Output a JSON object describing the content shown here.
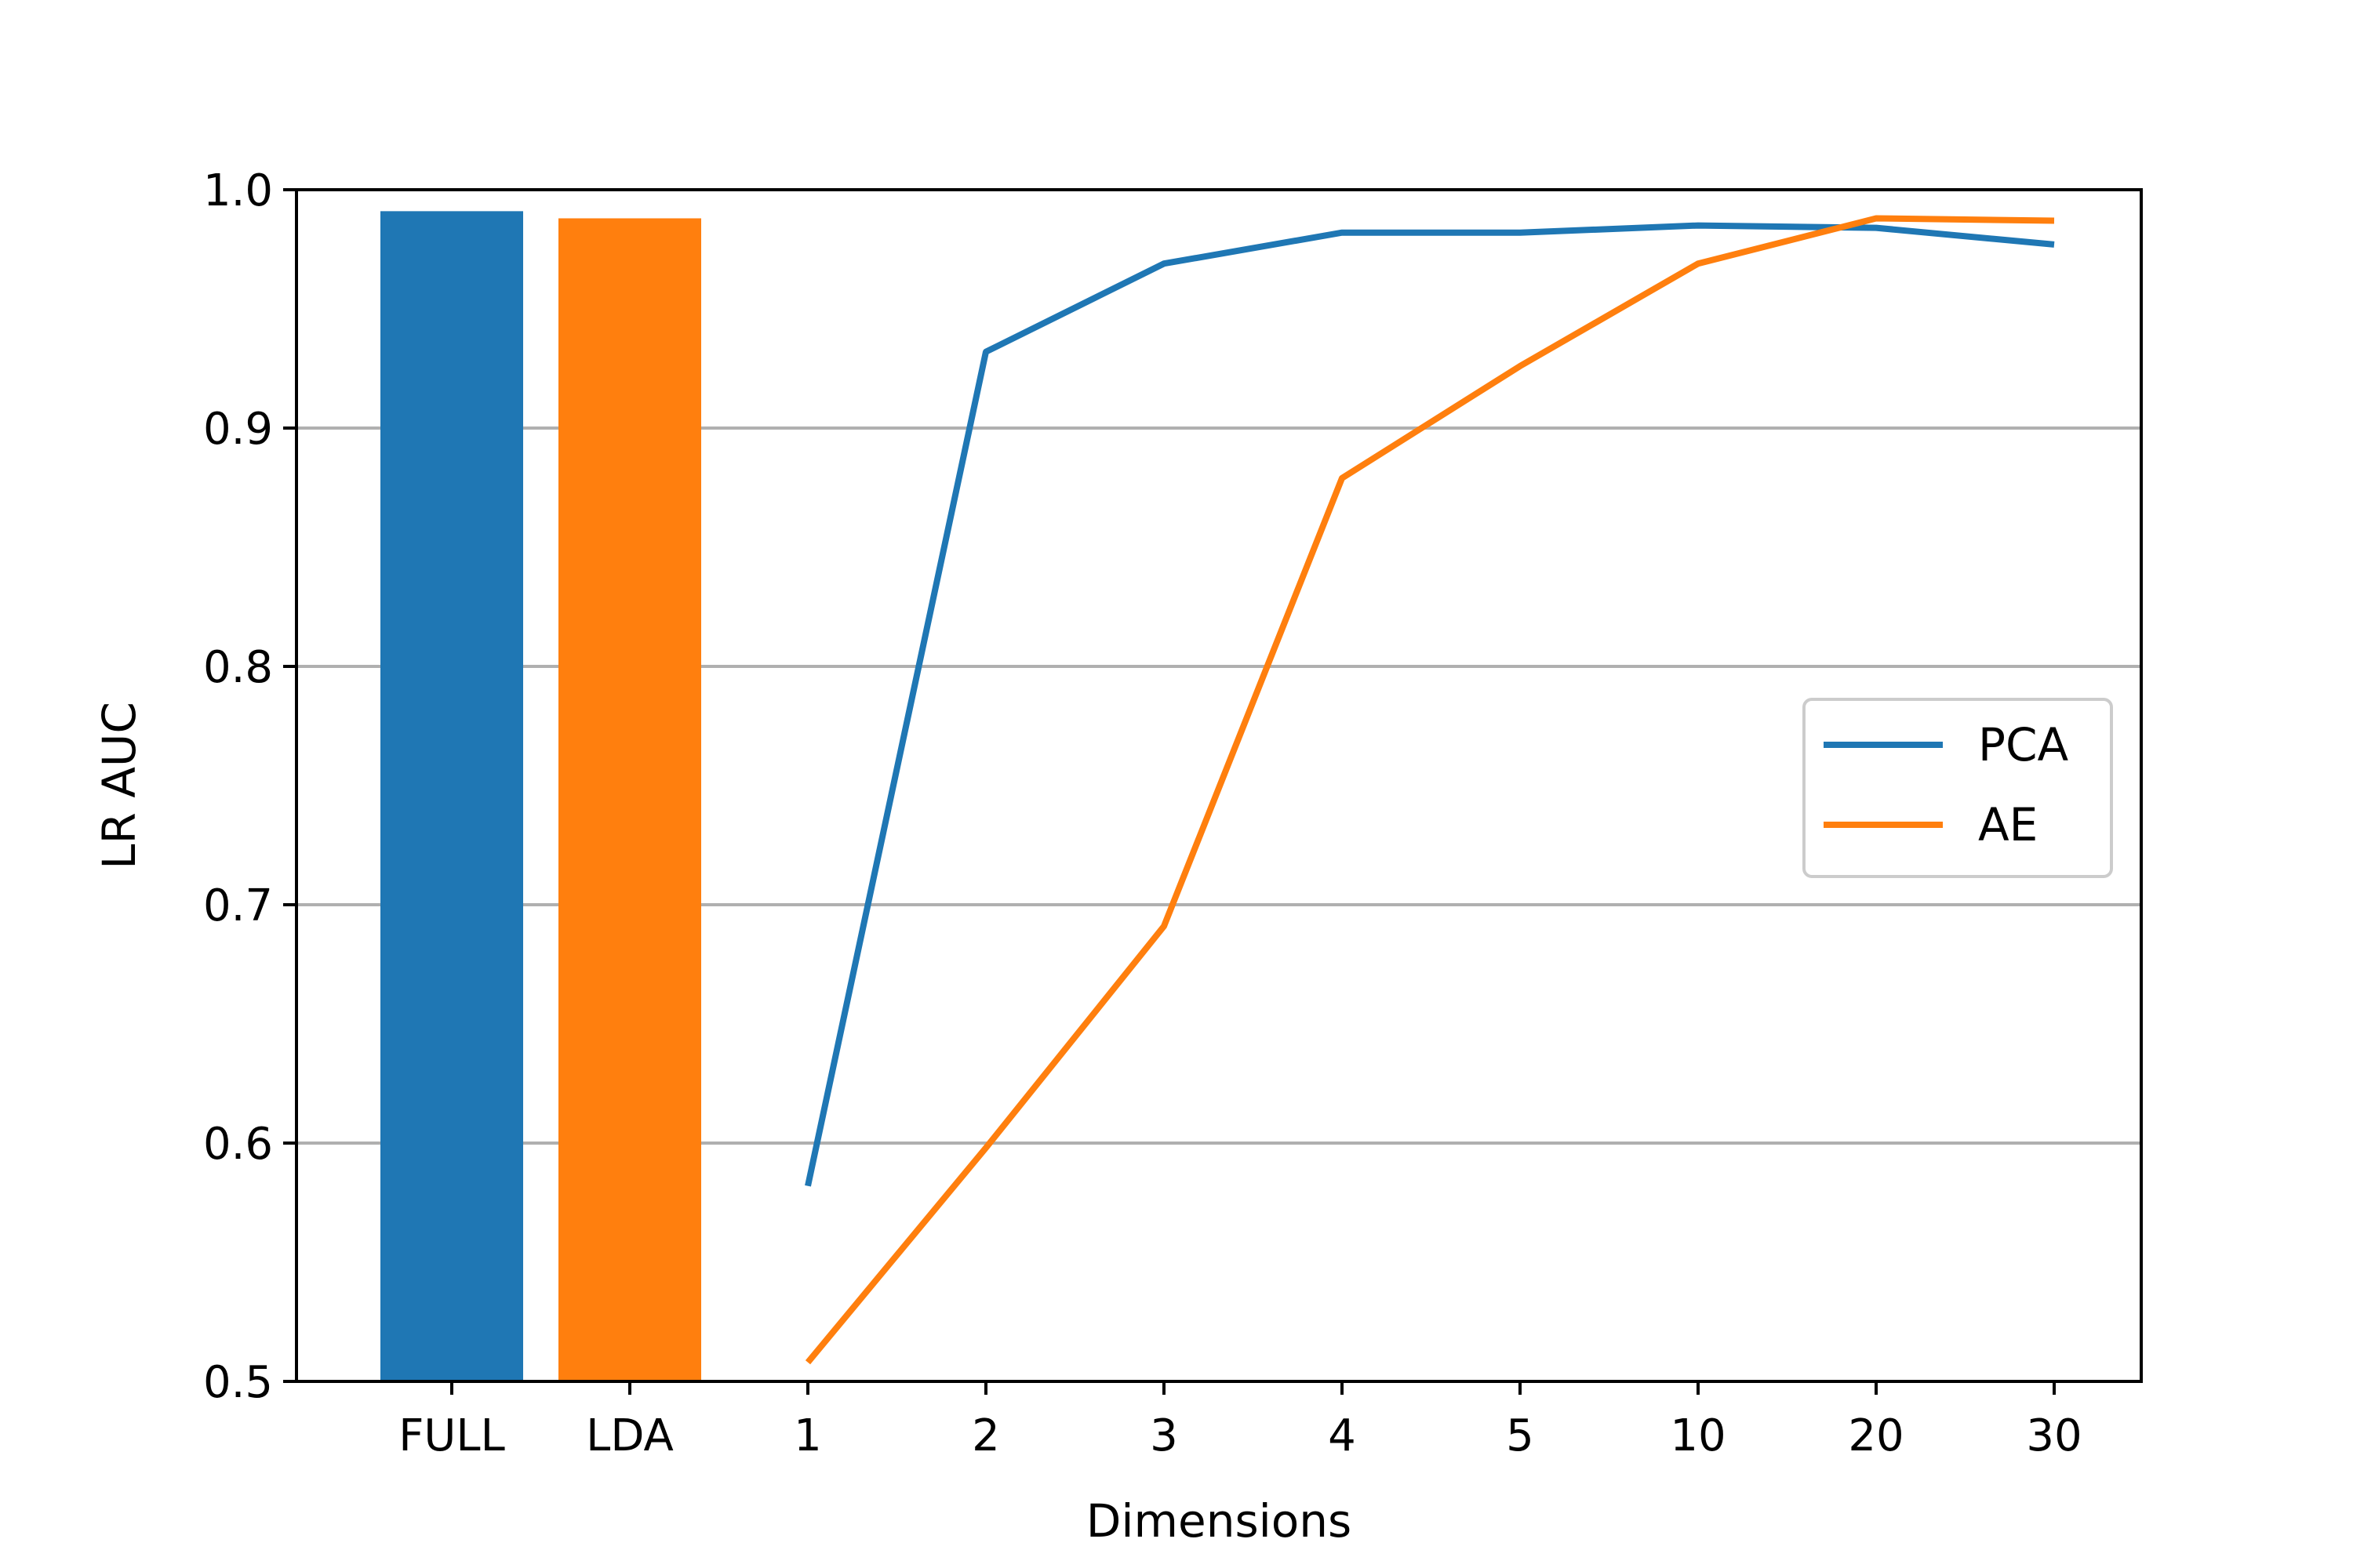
{
  "chart_data": {
    "type": "bar+line",
    "categories": [
      "FULL",
      "LDA",
      "1",
      "2",
      "3",
      "4",
      "5",
      "10",
      "20",
      "30"
    ],
    "bars": [
      {
        "category": "FULL",
        "value": 0.991,
        "color": "#1f77b4"
      },
      {
        "category": "LDA",
        "value": 0.988,
        "color": "#ff7f0e"
      }
    ],
    "series": [
      {
        "name": "PCA",
        "color": "#1f77b4",
        "x": [
          "1",
          "2",
          "3",
          "4",
          "5",
          "10",
          "20",
          "30"
        ],
        "values": [
          0.582,
          0.932,
          0.969,
          0.982,
          0.982,
          0.985,
          0.984,
          0.977
        ]
      },
      {
        "name": "AE",
        "color": "#ff7f0e",
        "x": [
          "1",
          "2",
          "3",
          "4",
          "5",
          "10",
          "20",
          "30"
        ],
        "values": [
          0.508,
          0.598,
          0.691,
          0.879,
          0.926,
          0.969,
          0.988,
          0.987
        ]
      }
    ],
    "xlabel": "Dimensions",
    "ylabel": "LR AUC",
    "ylim": [
      0.5,
      1.0
    ],
    "yticks": [
      "0.5",
      "0.6",
      "0.7",
      "0.8",
      "0.9",
      "1.0"
    ],
    "grid": "y",
    "legend": "right"
  }
}
